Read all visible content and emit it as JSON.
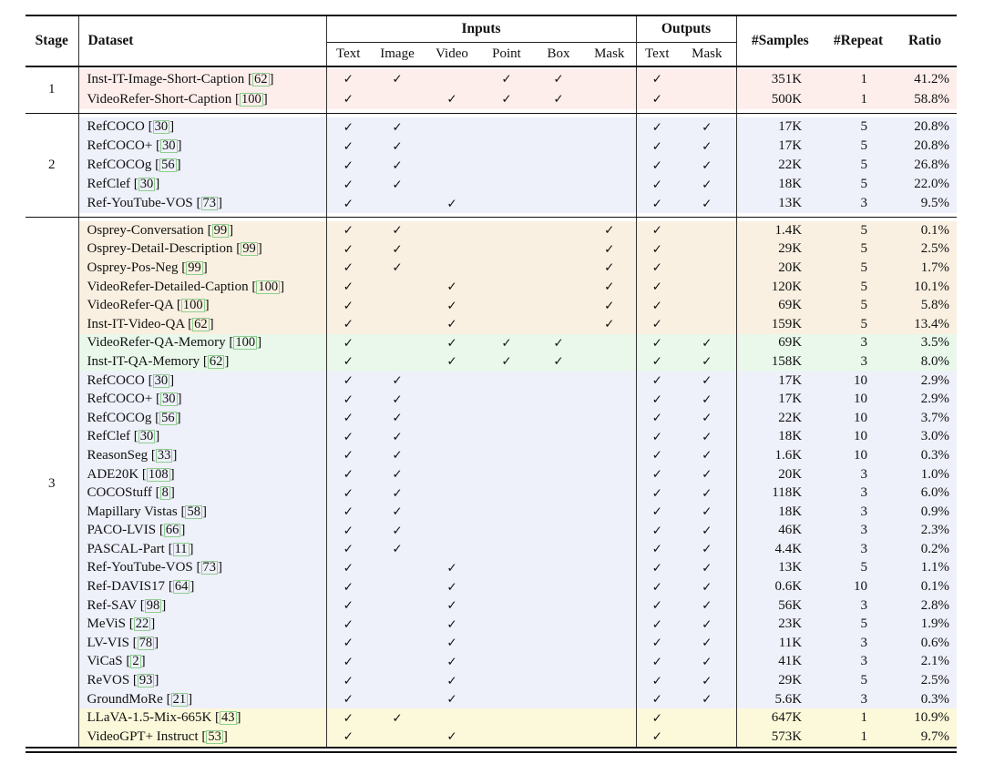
{
  "table": {
    "check_glyph": "✓",
    "row_colors": {
      "pink": "#fdeeec",
      "lavender": "#eef0fa",
      "cream": "#faf0e1",
      "green": "#e9f8eb",
      "yellow": "#fbf9d9"
    },
    "citation_border_color": "#8ecf8e",
    "header": {
      "stage": "Stage",
      "dataset": "Dataset",
      "inputs": "Inputs",
      "outputs": "Outputs",
      "input_cols": [
        "Text",
        "Image",
        "Video",
        "Point",
        "Box",
        "Mask"
      ],
      "output_cols": [
        "Text",
        "Mask"
      ],
      "samples": "#Samples",
      "repeat": "#Repeat",
      "ratio": "Ratio"
    },
    "stages": [
      {
        "label": "1",
        "rows": [
          {
            "name": "Inst-IT-Image-Short-Caption",
            "cite": "62",
            "in": [
              1,
              1,
              0,
              1,
              1,
              0
            ],
            "out": [
              1,
              0
            ],
            "samples": "351K",
            "repeat": "1",
            "ratio": "41.2%",
            "bg": "pink"
          },
          {
            "name": "VideoRefer-Short-Caption",
            "cite": "100",
            "in": [
              1,
              0,
              1,
              1,
              1,
              0
            ],
            "out": [
              1,
              0
            ],
            "samples": "500K",
            "repeat": "1",
            "ratio": "58.8%",
            "bg": "pink"
          }
        ]
      },
      {
        "label": "2",
        "rows": [
          {
            "name": "RefCOCO",
            "cite": "30",
            "in": [
              1,
              1,
              0,
              0,
              0,
              0
            ],
            "out": [
              1,
              1
            ],
            "samples": "17K",
            "repeat": "5",
            "ratio": "20.8%",
            "bg": "lavender"
          },
          {
            "name": "RefCOCO+",
            "cite": "30",
            "in": [
              1,
              1,
              0,
              0,
              0,
              0
            ],
            "out": [
              1,
              1
            ],
            "samples": "17K",
            "repeat": "5",
            "ratio": "20.8%",
            "bg": "lavender"
          },
          {
            "name": "RefCOCOg",
            "cite": "56",
            "in": [
              1,
              1,
              0,
              0,
              0,
              0
            ],
            "out": [
              1,
              1
            ],
            "samples": "22K",
            "repeat": "5",
            "ratio": "26.8%",
            "bg": "lavender"
          },
          {
            "name": "RefClef",
            "cite": "30",
            "in": [
              1,
              1,
              0,
              0,
              0,
              0
            ],
            "out": [
              1,
              1
            ],
            "samples": "18K",
            "repeat": "5",
            "ratio": "22.0%",
            "bg": "lavender"
          },
          {
            "name": "Ref-YouTube-VOS",
            "cite": "73",
            "in": [
              1,
              0,
              1,
              0,
              0,
              0
            ],
            "out": [
              1,
              1
            ],
            "samples": "13K",
            "repeat": "3",
            "ratio": "9.5%",
            "bg": "lavender"
          }
        ]
      },
      {
        "label": "3",
        "rows": [
          {
            "name": "Osprey-Conversation",
            "cite": "99",
            "in": [
              1,
              1,
              0,
              0,
              0,
              1
            ],
            "out": [
              1,
              0
            ],
            "samples": "1.4K",
            "repeat": "5",
            "ratio": "0.1%",
            "bg": "cream"
          },
          {
            "name": "Osprey-Detail-Description",
            "cite": "99",
            "in": [
              1,
              1,
              0,
              0,
              0,
              1
            ],
            "out": [
              1,
              0
            ],
            "samples": "29K",
            "repeat": "5",
            "ratio": "2.5%",
            "bg": "cream"
          },
          {
            "name": "Osprey-Pos-Neg",
            "cite": "99",
            "in": [
              1,
              1,
              0,
              0,
              0,
              1
            ],
            "out": [
              1,
              0
            ],
            "samples": "20K",
            "repeat": "5",
            "ratio": "1.7%",
            "bg": "cream"
          },
          {
            "name": "VideoRefer-Detailed-Caption",
            "cite": "100",
            "in": [
              1,
              0,
              1,
              0,
              0,
              1
            ],
            "out": [
              1,
              0
            ],
            "samples": "120K",
            "repeat": "5",
            "ratio": "10.1%",
            "bg": "cream"
          },
          {
            "name": "VideoRefer-QA",
            "cite": "100",
            "in": [
              1,
              0,
              1,
              0,
              0,
              1
            ],
            "out": [
              1,
              0
            ],
            "samples": "69K",
            "repeat": "5",
            "ratio": "5.8%",
            "bg": "cream"
          },
          {
            "name": "Inst-IT-Video-QA",
            "cite": "62",
            "in": [
              1,
              0,
              1,
              0,
              0,
              1
            ],
            "out": [
              1,
              0
            ],
            "samples": "159K",
            "repeat": "5",
            "ratio": "13.4%",
            "bg": "cream"
          },
          {
            "name": "VideoRefer-QA-Memory",
            "cite": "100",
            "in": [
              1,
              0,
              1,
              1,
              1,
              0
            ],
            "out": [
              1,
              1
            ],
            "samples": "69K",
            "repeat": "3",
            "ratio": "3.5%",
            "bg": "green"
          },
          {
            "name": "Inst-IT-QA-Memory",
            "cite": "62",
            "in": [
              1,
              0,
              1,
              1,
              1,
              0
            ],
            "out": [
              1,
              1
            ],
            "samples": "158K",
            "repeat": "3",
            "ratio": "8.0%",
            "bg": "green"
          },
          {
            "name": "RefCOCO",
            "cite": "30",
            "in": [
              1,
              1,
              0,
              0,
              0,
              0
            ],
            "out": [
              1,
              1
            ],
            "samples": "17K",
            "repeat": "10",
            "ratio": "2.9%",
            "bg": "lavender"
          },
          {
            "name": "RefCOCO+",
            "cite": "30",
            "in": [
              1,
              1,
              0,
              0,
              0,
              0
            ],
            "out": [
              1,
              1
            ],
            "samples": "17K",
            "repeat": "10",
            "ratio": "2.9%",
            "bg": "lavender"
          },
          {
            "name": "RefCOCOg",
            "cite": "56",
            "in": [
              1,
              1,
              0,
              0,
              0,
              0
            ],
            "out": [
              1,
              1
            ],
            "samples": "22K",
            "repeat": "10",
            "ratio": "3.7%",
            "bg": "lavender"
          },
          {
            "name": "RefClef",
            "cite": "30",
            "in": [
              1,
              1,
              0,
              0,
              0,
              0
            ],
            "out": [
              1,
              1
            ],
            "samples": "18K",
            "repeat": "10",
            "ratio": "3.0%",
            "bg": "lavender"
          },
          {
            "name": "ReasonSeg",
            "cite": "33",
            "in": [
              1,
              1,
              0,
              0,
              0,
              0
            ],
            "out": [
              1,
              1
            ],
            "samples": "1.6K",
            "repeat": "10",
            "ratio": "0.3%",
            "bg": "lavender"
          },
          {
            "name": "ADE20K",
            "cite": "108",
            "in": [
              1,
              1,
              0,
              0,
              0,
              0
            ],
            "out": [
              1,
              1
            ],
            "samples": "20K",
            "repeat": "3",
            "ratio": "1.0%",
            "bg": "lavender"
          },
          {
            "name": "COCOStuff",
            "cite": "8",
            "in": [
              1,
              1,
              0,
              0,
              0,
              0
            ],
            "out": [
              1,
              1
            ],
            "samples": "118K",
            "repeat": "3",
            "ratio": "6.0%",
            "bg": "lavender"
          },
          {
            "name": "Mapillary Vistas",
            "cite": "58",
            "in": [
              1,
              1,
              0,
              0,
              0,
              0
            ],
            "out": [
              1,
              1
            ],
            "samples": "18K",
            "repeat": "3",
            "ratio": "0.9%",
            "bg": "lavender"
          },
          {
            "name": "PACO-LVIS",
            "cite": "66",
            "in": [
              1,
              1,
              0,
              0,
              0,
              0
            ],
            "out": [
              1,
              1
            ],
            "samples": "46K",
            "repeat": "3",
            "ratio": "2.3%",
            "bg": "lavender"
          },
          {
            "name": "PASCAL-Part",
            "cite": "11",
            "in": [
              1,
              1,
              0,
              0,
              0,
              0
            ],
            "out": [
              1,
              1
            ],
            "samples": "4.4K",
            "repeat": "3",
            "ratio": "0.2%",
            "bg": "lavender"
          },
          {
            "name": "Ref-YouTube-VOS",
            "cite": "73",
            "in": [
              1,
              0,
              1,
              0,
              0,
              0
            ],
            "out": [
              1,
              1
            ],
            "samples": "13K",
            "repeat": "5",
            "ratio": "1.1%",
            "bg": "lavender"
          },
          {
            "name": "Ref-DAVIS17",
            "cite": "64",
            "in": [
              1,
              0,
              1,
              0,
              0,
              0
            ],
            "out": [
              1,
              1
            ],
            "samples": "0.6K",
            "repeat": "10",
            "ratio": "0.1%",
            "bg": "lavender"
          },
          {
            "name": "Ref-SAV",
            "cite": "98",
            "in": [
              1,
              0,
              1,
              0,
              0,
              0
            ],
            "out": [
              1,
              1
            ],
            "samples": "56K",
            "repeat": "3",
            "ratio": "2.8%",
            "bg": "lavender"
          },
          {
            "name": "MeViS",
            "cite": "22",
            "in": [
              1,
              0,
              1,
              0,
              0,
              0
            ],
            "out": [
              1,
              1
            ],
            "samples": "23K",
            "repeat": "5",
            "ratio": "1.9%",
            "bg": "lavender"
          },
          {
            "name": "LV-VIS",
            "cite": "78",
            "in": [
              1,
              0,
              1,
              0,
              0,
              0
            ],
            "out": [
              1,
              1
            ],
            "samples": "11K",
            "repeat": "3",
            "ratio": "0.6%",
            "bg": "lavender"
          },
          {
            "name": "ViCaS",
            "cite": "2",
            "in": [
              1,
              0,
              1,
              0,
              0,
              0
            ],
            "out": [
              1,
              1
            ],
            "samples": "41K",
            "repeat": "3",
            "ratio": "2.1%",
            "bg": "lavender"
          },
          {
            "name": "ReVOS",
            "cite": "93",
            "in": [
              1,
              0,
              1,
              0,
              0,
              0
            ],
            "out": [
              1,
              1
            ],
            "samples": "29K",
            "repeat": "5",
            "ratio": "2.5%",
            "bg": "lavender"
          },
          {
            "name": "GroundMoRe",
            "cite": "21",
            "in": [
              1,
              0,
              1,
              0,
              0,
              0
            ],
            "out": [
              1,
              1
            ],
            "samples": "5.6K",
            "repeat": "3",
            "ratio": "0.3%",
            "bg": "lavender"
          },
          {
            "name": "LLaVA-1.5-Mix-665K",
            "cite": "43",
            "in": [
              1,
              1,
              0,
              0,
              0,
              0
            ],
            "out": [
              1,
              0
            ],
            "samples": "647K",
            "repeat": "1",
            "ratio": "10.9%",
            "bg": "yellow"
          },
          {
            "name": "VideoGPT+ Instruct",
            "cite": "53",
            "in": [
              1,
              0,
              1,
              0,
              0,
              0
            ],
            "out": [
              1,
              0
            ],
            "samples": "573K",
            "repeat": "1",
            "ratio": "9.7%",
            "bg": "yellow"
          }
        ]
      }
    ]
  }
}
